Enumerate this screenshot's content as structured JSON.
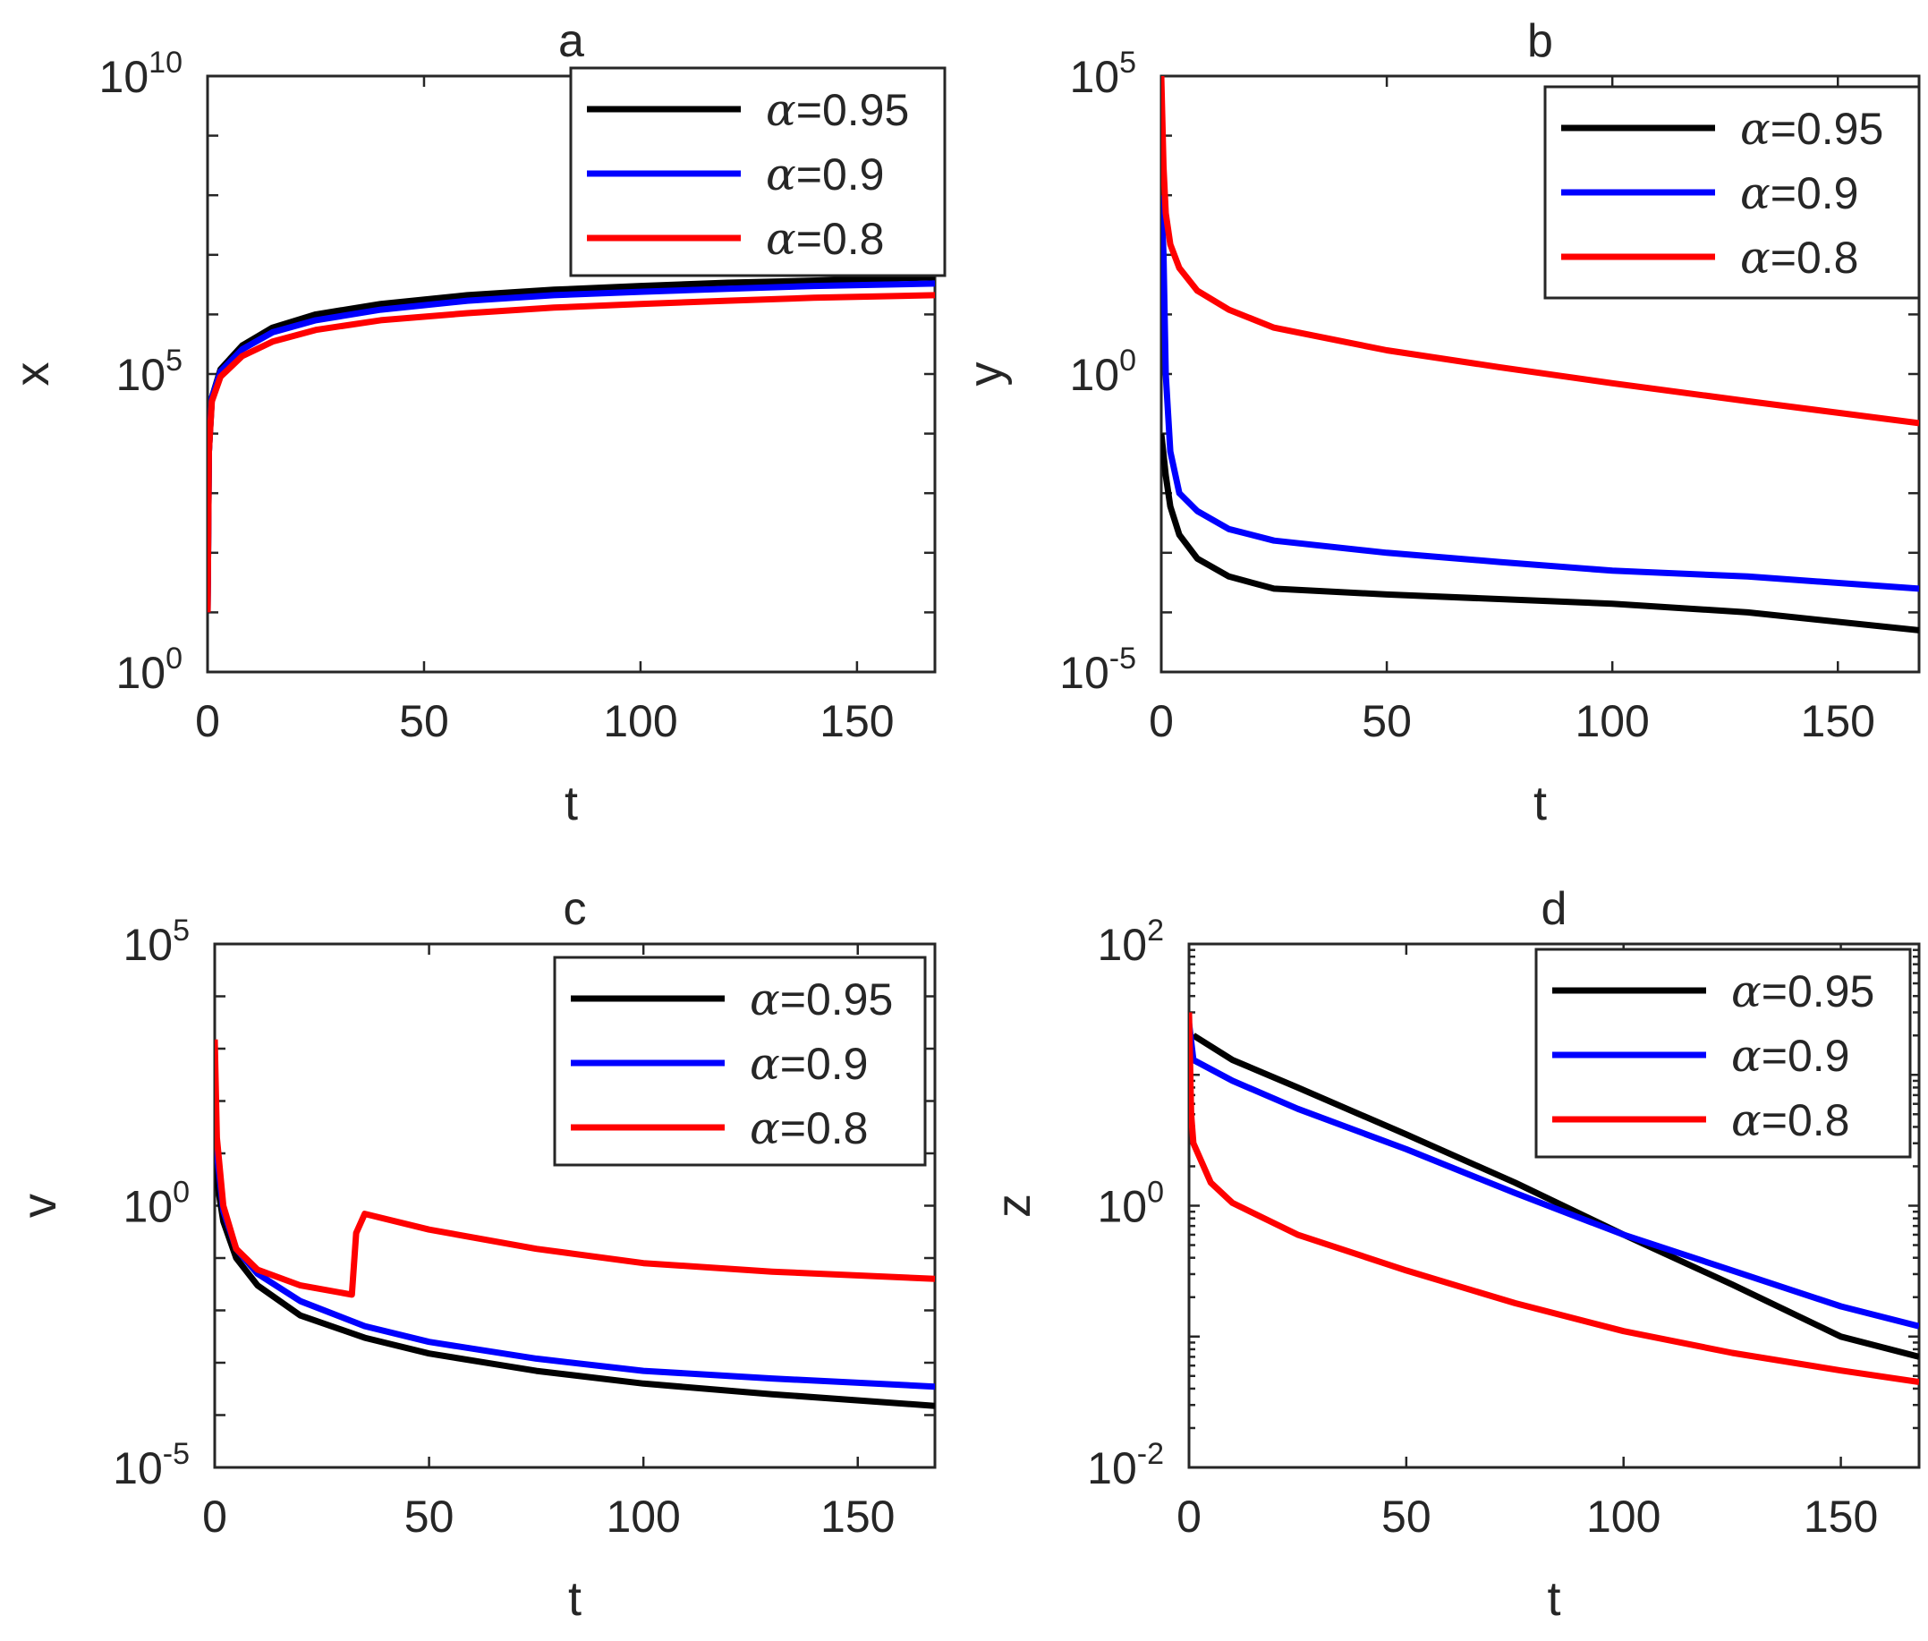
{
  "chart_data": [
    {
      "id": "a",
      "type": "line",
      "title": "a",
      "xlabel": "t",
      "ylabel": "x",
      "yscale": "log",
      "xlim": [
        0,
        168
      ],
      "ylim": [
        1,
        10000000000
      ],
      "xticks": [
        "0",
        "50",
        "100",
        "150"
      ],
      "yticks": [
        {
          "base": "10",
          "exp": "10"
        },
        {
          "base": "10",
          "exp": "5"
        },
        {
          "base": "10",
          "exp": "0"
        }
      ],
      "legend_position": "top-right",
      "series": [
        {
          "name": "α=0.95",
          "alpha_value": "0.95",
          "color": "#000000",
          "points": [
            [
              0,
              10
            ],
            [
              0.3,
              5000
            ],
            [
              1,
              40000
            ],
            [
              3,
              120000
            ],
            [
              8,
              300000
            ],
            [
              15,
              600000
            ],
            [
              25,
              1000000
            ],
            [
              40,
              1500000
            ],
            [
              60,
              2100000
            ],
            [
              80,
              2600000
            ],
            [
              100,
              3000000
            ],
            [
              120,
              3400000
            ],
            [
              140,
              3700000
            ],
            [
              168,
              4200000
            ]
          ]
        },
        {
          "name": "α=0.9",
          "alpha_value": "0.9",
          "color": "#0000ff",
          "points": [
            [
              0,
              10
            ],
            [
              0.3,
              5000
            ],
            [
              1,
              40000
            ],
            [
              3,
              110000
            ],
            [
              8,
              260000
            ],
            [
              15,
              500000
            ],
            [
              25,
              800000
            ],
            [
              40,
              1200000
            ],
            [
              60,
              1700000
            ],
            [
              80,
              2100000
            ],
            [
              100,
              2400000
            ],
            [
              120,
              2700000
            ],
            [
              140,
              3000000
            ],
            [
              168,
              3300000
            ]
          ]
        },
        {
          "name": "α=0.8",
          "alpha_value": "0.8",
          "color": "#ff0000",
          "points": [
            [
              0,
              10
            ],
            [
              0.3,
              5000
            ],
            [
              1,
              35000
            ],
            [
              3,
              90000
            ],
            [
              8,
              200000
            ],
            [
              15,
              350000
            ],
            [
              25,
              550000
            ],
            [
              40,
              800000
            ],
            [
              60,
              1050000
            ],
            [
              80,
              1300000
            ],
            [
              100,
              1500000
            ],
            [
              120,
              1700000
            ],
            [
              140,
              1900000
            ],
            [
              168,
              2100000
            ]
          ]
        }
      ]
    },
    {
      "id": "b",
      "type": "line",
      "title": "b",
      "xlabel": "t",
      "ylabel": "y",
      "yscale": "log",
      "xlim": [
        0,
        168
      ],
      "ylim": [
        1e-05,
        100000
      ],
      "xticks": [
        "0",
        "50",
        "100",
        "150"
      ],
      "yticks": [
        {
          "base": "10",
          "exp": "5"
        },
        {
          "base": "10",
          "exp": "0"
        },
        {
          "base": "10",
          "exp": "-5"
        }
      ],
      "legend_position": "top-right",
      "series": [
        {
          "name": "α=0.95",
          "alpha_value": "0.95",
          "color": "#000000",
          "points": [
            [
              0,
              0.1
            ],
            [
              1,
              0.02
            ],
            [
              2,
              0.006
            ],
            [
              4,
              0.002
            ],
            [
              8,
              0.0008
            ],
            [
              15,
              0.0004
            ],
            [
              25,
              0.00025
            ],
            [
              50,
              0.0002
            ],
            [
              100,
              0.00014
            ],
            [
              130,
              0.0001
            ],
            [
              168,
              5e-05
            ]
          ]
        },
        {
          "name": "α=0.9",
          "alpha_value": "0.9",
          "color": "#0000ff",
          "points": [
            [
              0,
              1000
            ],
            [
              0.5,
              100
            ],
            [
              1,
              1
            ],
            [
              2,
              0.05
            ],
            [
              4,
              0.01
            ],
            [
              8,
              0.005
            ],
            [
              15,
              0.0025
            ],
            [
              25,
              0.0016
            ],
            [
              50,
              0.001
            ],
            [
              75,
              0.0007
            ],
            [
              100,
              0.0005
            ],
            [
              130,
              0.0004
            ],
            [
              168,
              0.00025
            ]
          ]
        },
        {
          "name": "α=0.8",
          "alpha_value": "0.8",
          "color": "#ff0000",
          "points": [
            [
              0,
              100000
            ],
            [
              0.5,
              3000
            ],
            [
              1,
              500
            ],
            [
              2,
              150
            ],
            [
              4,
              60
            ],
            [
              8,
              25
            ],
            [
              15,
              12
            ],
            [
              25,
              6
            ],
            [
              50,
              2.5
            ],
            [
              75,
              1.3
            ],
            [
              100,
              0.7
            ],
            [
              130,
              0.35
            ],
            [
              168,
              0.15
            ]
          ]
        }
      ]
    },
    {
      "id": "c",
      "type": "line",
      "title": "c",
      "xlabel": "t",
      "ylabel": "v",
      "yscale": "log",
      "xlim": [
        0,
        168
      ],
      "ylim": [
        1e-05,
        100000
      ],
      "xticks": [
        "0",
        "50",
        "100",
        "150"
      ],
      "yticks": [
        {
          "base": "10",
          "exp": "5"
        },
        {
          "base": "10",
          "exp": "0"
        },
        {
          "base": "10",
          "exp": "-5"
        }
      ],
      "legend_position": "top-right",
      "series": [
        {
          "name": "α=0.95",
          "alpha_value": "0.95",
          "color": "#000000",
          "points": [
            [
              0,
              30
            ],
            [
              0.5,
              3
            ],
            [
              2,
              0.5
            ],
            [
              5,
              0.1
            ],
            [
              10,
              0.03
            ],
            [
              20,
              0.008
            ],
            [
              35,
              0.003
            ],
            [
              50,
              0.0015
            ],
            [
              75,
              0.0007
            ],
            [
              100,
              0.0004
            ],
            [
              130,
              0.00025
            ],
            [
              168,
              0.00015
            ]
          ]
        },
        {
          "name": "α=0.9",
          "alpha_value": "0.9",
          "color": "#0000ff",
          "points": [
            [
              0,
              200
            ],
            [
              0.5,
              10
            ],
            [
              2,
              0.8
            ],
            [
              5,
              0.15
            ],
            [
              10,
              0.05
            ],
            [
              20,
              0.015
            ],
            [
              35,
              0.005
            ],
            [
              50,
              0.0025
            ],
            [
              75,
              0.0012
            ],
            [
              100,
              0.0007
            ],
            [
              130,
              0.0005
            ],
            [
              168,
              0.00035
            ]
          ]
        },
        {
          "name": "α=0.8",
          "alpha_value": "0.8",
          "color": "#ff0000",
          "points": [
            [
              0,
              1500
            ],
            [
              0.5,
              20
            ],
            [
              2,
              1
            ],
            [
              5,
              0.15
            ],
            [
              10,
              0.06
            ],
            [
              20,
              0.03
            ],
            [
              32,
              0.02
            ],
            [
              33,
              0.3
            ],
            [
              35,
              0.7
            ],
            [
              50,
              0.35
            ],
            [
              75,
              0.15
            ],
            [
              100,
              0.08
            ],
            [
              130,
              0.055
            ],
            [
              168,
              0.04
            ]
          ]
        }
      ]
    },
    {
      "id": "d",
      "type": "line",
      "title": "d",
      "xlabel": "t",
      "ylabel": "z",
      "yscale": "log",
      "xlim": [
        0,
        168
      ],
      "ylim": [
        0.01,
        100
      ],
      "xticks": [
        "0",
        "50",
        "100",
        "150"
      ],
      "yticks": [
        {
          "base": "10",
          "exp": "2"
        },
        {
          "base": "10",
          "exp": "0"
        },
        {
          "base": "10",
          "exp": "-2"
        }
      ],
      "legend_position": "top-right",
      "series": [
        {
          "name": "α=0.95",
          "alpha_value": "0.95",
          "color": "#000000",
          "points": [
            [
              1,
              20
            ],
            [
              10,
              13
            ],
            [
              25,
              8
            ],
            [
              50,
              3.5
            ],
            [
              75,
              1.5
            ],
            [
              100,
              0.6
            ],
            [
              125,
              0.25
            ],
            [
              150,
              0.1
            ],
            [
              168,
              0.07
            ]
          ]
        },
        {
          "name": "α=0.9",
          "alpha_value": "0.9",
          "color": "#0000ff",
          "points": [
            [
              0,
              25
            ],
            [
              1,
              13
            ],
            [
              10,
              9
            ],
            [
              25,
              5.5
            ],
            [
              50,
              2.7
            ],
            [
              75,
              1.25
            ],
            [
              100,
              0.6
            ],
            [
              125,
              0.32
            ],
            [
              150,
              0.17
            ],
            [
              168,
              0.12
            ]
          ]
        },
        {
          "name": "α=0.8",
          "alpha_value": "0.8",
          "color": "#ff0000",
          "points": [
            [
              0,
              30
            ],
            [
              0.5,
              5
            ],
            [
              1,
              3
            ],
            [
              5,
              1.5
            ],
            [
              10,
              1.05
            ],
            [
              25,
              0.6
            ],
            [
              50,
              0.32
            ],
            [
              75,
              0.18
            ],
            [
              100,
              0.11
            ],
            [
              125,
              0.075
            ],
            [
              150,
              0.055
            ],
            [
              168,
              0.045
            ]
          ]
        }
      ]
    }
  ]
}
